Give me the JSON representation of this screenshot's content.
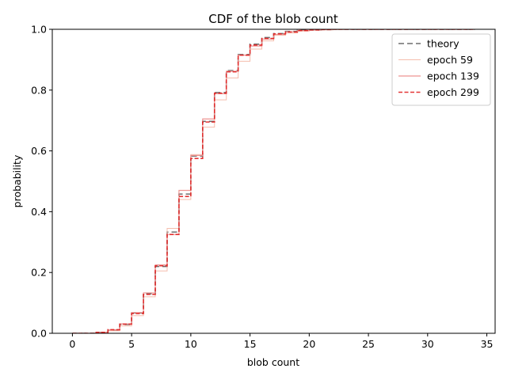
{
  "chart_data": {
    "type": "line",
    "step": true,
    "title": "CDF of the blob count",
    "xlabel": "blob count",
    "ylabel": "probability",
    "xlim": [
      -1.7,
      35.7
    ],
    "ylim": [
      0,
      1.0
    ],
    "xticks": [
      0,
      5,
      10,
      15,
      20,
      25,
      30,
      35
    ],
    "yticks": [
      0.0,
      0.2,
      0.4,
      0.6,
      0.8,
      1.0
    ],
    "xtick_labels": [
      "0",
      "5",
      "10",
      "15",
      "20",
      "25",
      "30",
      "35"
    ],
    "ytick_labels": [
      "0.0",
      "0.2",
      "0.4",
      "0.6",
      "0.8",
      "1.0"
    ],
    "grid": false,
    "legend_position": "top-right",
    "x": [
      0,
      1,
      2,
      3,
      4,
      5,
      6,
      7,
      8,
      9,
      10,
      11,
      12,
      13,
      14,
      15,
      16,
      17,
      18,
      19,
      20,
      21,
      22,
      23,
      24,
      25,
      26,
      27,
      28,
      29,
      30,
      31,
      32,
      33,
      34
    ],
    "series": [
      {
        "name": "theory",
        "color": "#555555",
        "dash": "7,4",
        "width": 1.6,
        "opacity": 0.85,
        "values": [
          0.0,
          0.0,
          0.003,
          0.01,
          0.029,
          0.067,
          0.13,
          0.22,
          0.333,
          0.458,
          0.583,
          0.697,
          0.792,
          0.864,
          0.917,
          0.951,
          0.973,
          0.986,
          0.993,
          0.997,
          0.998,
          0.999,
          1.0,
          1.0,
          1.0,
          1.0,
          1.0,
          1.0,
          1.0,
          1.0,
          1.0,
          1.0,
          1.0,
          1.0,
          1.0
        ]
      },
      {
        "name": "epoch 59",
        "color": "#f4b6a4",
        "dash": "",
        "width": 1.0,
        "opacity": 0.9,
        "values": [
          0.0,
          0.0,
          0.002,
          0.008,
          0.024,
          0.058,
          0.12,
          0.205,
          0.345,
          0.44,
          0.588,
          0.678,
          0.768,
          0.84,
          0.895,
          0.935,
          0.962,
          0.98,
          0.988,
          0.994,
          0.997,
          0.998,
          0.999,
          1.0,
          1.0,
          1.0,
          1.0,
          1.0,
          1.0,
          1.0,
          1.0,
          1.0,
          1.0,
          1.0,
          1.0
        ]
      },
      {
        "name": "epoch 139",
        "color": "#ec8a87",
        "dash": "",
        "width": 1.2,
        "opacity": 0.9,
        "values": [
          0.0,
          0.0,
          0.003,
          0.011,
          0.031,
          0.068,
          0.133,
          0.225,
          0.325,
          0.47,
          0.585,
          0.705,
          0.788,
          0.862,
          0.915,
          0.945,
          0.968,
          0.983,
          0.992,
          0.996,
          0.998,
          0.999,
          1.0,
          1.0,
          1.0,
          1.0,
          1.0,
          1.0,
          1.0,
          1.0,
          1.0,
          1.0,
          1.0,
          1.0,
          1.0
        ]
      },
      {
        "name": "epoch 299",
        "color": "#e02020",
        "dash": "5,2.5",
        "width": 1.6,
        "opacity": 0.9,
        "values": [
          0.0,
          0.0,
          0.003,
          0.012,
          0.03,
          0.065,
          0.128,
          0.222,
          0.325,
          0.45,
          0.575,
          0.695,
          0.79,
          0.86,
          0.915,
          0.948,
          0.97,
          0.985,
          0.991,
          0.996,
          0.998,
          0.999,
          1.0,
          1.0,
          1.0,
          1.0,
          1.0,
          1.0,
          1.0,
          1.0,
          1.0,
          1.0,
          1.0,
          1.0,
          1.0
        ]
      }
    ]
  }
}
